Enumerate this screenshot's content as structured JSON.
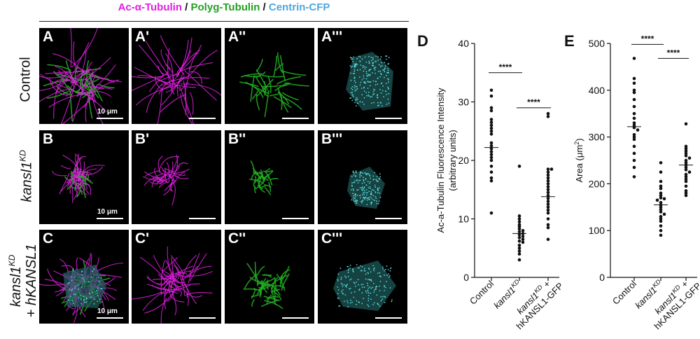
{
  "title": {
    "ac": "Ac-α-Tubulin",
    "sep1": " / ",
    "polyg": "Polyg-Tubulin",
    "sep2": " / ",
    "centrin": "Centrin-CFP"
  },
  "rows": [
    {
      "label_main": "Control",
      "label_sup": "",
      "label_suffix": "",
      "label_line2": ""
    },
    {
      "label_main": "kansl1",
      "label_sup": "KD",
      "label_suffix": "",
      "label_line2": ""
    },
    {
      "label_main": "kansl1",
      "label_sup": "KD",
      "label_suffix": "",
      "label_line2": "+ hKANSL1"
    }
  ],
  "panel_labels": [
    [
      "A",
      "A'",
      "A''",
      "A'''"
    ],
    [
      "B",
      "B'",
      "B''",
      "B'''"
    ],
    [
      "C",
      "C'",
      "C''",
      "C'''"
    ]
  ],
  "scale_label": "10 μm",
  "colors": {
    "magenta": "#e020e0",
    "green": "#22b022",
    "cyan": "#5ad6d6",
    "black": "#000000"
  },
  "chart_data": [
    {
      "type": "scatter",
      "panel_letter": "D",
      "ylabel_line1": "Ac-a-Tubulin Fluorescence Intensity",
      "ylabel_line2": "(arbitrary units)",
      "ylim": [
        0,
        40
      ],
      "yticks": [
        0,
        10,
        20,
        30,
        40
      ],
      "categories": [
        "Control",
        "kansl1KD",
        "kansl1KD + hKANSL1-GFP"
      ],
      "category_labels": [
        {
          "main": "Control",
          "sup": "",
          "rest": "",
          "line2": ""
        },
        {
          "main": "kansl1",
          "sup": "KD",
          "rest": "",
          "line2": ""
        },
        {
          "main": "kansl1",
          "sup": "KD",
          "rest": " +",
          "line2": "hKANSL1-GFP"
        }
      ],
      "means": [
        22.2,
        7.5,
        13.8
      ],
      "series": [
        {
          "values": [
            32,
            31,
            29,
            28.5,
            27,
            26.5,
            26,
            25.5,
            25,
            24.5,
            23,
            22.5,
            22,
            21.5,
            21,
            20.5,
            20,
            19,
            18,
            17,
            16.5,
            11
          ]
        },
        {
          "values": [
            19,
            10.5,
            10,
            9.5,
            9,
            8.7,
            8.3,
            8,
            7.8,
            7.5,
            7.3,
            7,
            6.8,
            6.5,
            6.2,
            6,
            5.5,
            5,
            4.5,
            4,
            3
          ]
        },
        {
          "values": [
            28,
            27.5,
            18.5,
            18.5,
            18,
            17.5,
            17,
            16.5,
            16,
            15.5,
            15,
            14.5,
            14,
            13.5,
            13,
            12.5,
            12,
            11.5,
            11,
            10,
            9,
            8.5,
            6.5
          ]
        }
      ],
      "significance": [
        {
          "from": 0,
          "to": 1,
          "y": 35,
          "label": "****"
        },
        {
          "from": 1,
          "to": 2,
          "y": 29,
          "label": "****"
        }
      ]
    },
    {
      "type": "scatter",
      "panel_letter": "E",
      "ylabel_main": "Area (μm",
      "ylabel_sup": "2",
      "ylabel_end": ")",
      "ylim": [
        0,
        500
      ],
      "yticks": [
        0,
        100,
        200,
        300,
        400,
        500
      ],
      "categories": [
        "Control",
        "kansl1KD",
        "kansl1KD + hKANSL1-GFP"
      ],
      "category_labels": [
        {
          "main": "Control",
          "sup": "",
          "rest": "",
          "line2": ""
        },
        {
          "main": "kansl1",
          "sup": "KD",
          "rest": "",
          "line2": ""
        },
        {
          "main": "kansl1",
          "sup": "KD",
          "rest": " +",
          "line2": "hKANSL1-GFP"
        }
      ],
      "means": [
        322,
        155,
        240
      ],
      "series": [
        {
          "values": [
            468,
            425,
            415,
            400,
            395,
            380,
            365,
            350,
            340,
            330,
            325,
            320,
            315,
            305,
            300,
            295,
            280,
            265,
            250,
            235,
            215
          ]
        },
        {
          "values": [
            245,
            225,
            205,
            195,
            190,
            180,
            175,
            170,
            168,
            165,
            160,
            155,
            150,
            145,
            140,
            135,
            130,
            125,
            120,
            110,
            100,
            90
          ]
        },
        {
          "values": [
            328,
            280,
            275,
            270,
            265,
            260,
            255,
            250,
            245,
            240,
            235,
            230,
            225,
            220,
            215,
            210,
            205,
            195,
            185,
            180,
            175
          ]
        }
      ],
      "significance": [
        {
          "from": 0,
          "to": 1,
          "y": 498,
          "label": "****"
        },
        {
          "from": 1,
          "to": 2,
          "y": 468,
          "label": "****"
        }
      ]
    }
  ]
}
